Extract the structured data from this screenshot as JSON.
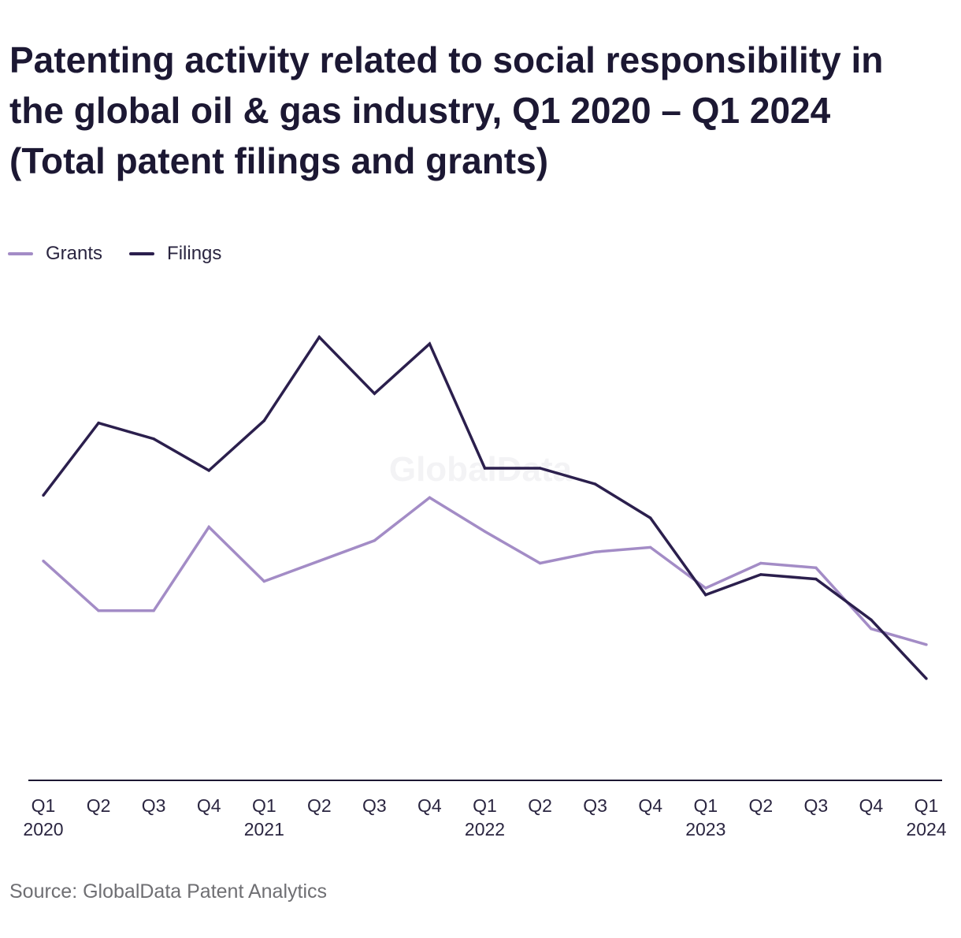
{
  "title_lines": [
    "Patenting activity related to social responsibility in",
    "the global oil & gas industry, Q1 2020 – Q1 2024",
    "(Total patent filings and grants)"
  ],
  "source": "Source: GlobalData Patent Analytics",
  "watermark": "GlobalData",
  "colors": {
    "Grants": "#a38cc6",
    "Filings": "#2b1f4d",
    "axis": "#1c1833"
  },
  "chart_data": {
    "type": "line",
    "title": "Patenting activity related to social responsibility in the global oil & gas industry, Q1 2020 – Q1 2024 (Total patent filings and grants)",
    "categories": [
      "Q1 2020",
      "Q2 2020",
      "Q3 2020",
      "Q4 2020",
      "Q1 2021",
      "Q2 2021",
      "Q3 2021",
      "Q4 2021",
      "Q1 2022",
      "Q2 2022",
      "Q3 2022",
      "Q4 2022",
      "Q1 2023",
      "Q2 2023",
      "Q3 2023",
      "Q4 2023",
      "Q1 2024"
    ],
    "tick_labels": [
      [
        "Q1",
        "2020"
      ],
      [
        "Q2",
        ""
      ],
      [
        "Q3",
        ""
      ],
      [
        "Q4",
        ""
      ],
      [
        "Q1",
        "2021"
      ],
      [
        "Q2",
        ""
      ],
      [
        "Q3",
        ""
      ],
      [
        "Q4",
        ""
      ],
      [
        "Q1",
        "2022"
      ],
      [
        "Q2",
        ""
      ],
      [
        "Q3",
        ""
      ],
      [
        "Q4",
        ""
      ],
      [
        "Q1",
        "2023"
      ],
      [
        "Q2",
        ""
      ],
      [
        "Q3",
        ""
      ],
      [
        "Q4",
        ""
      ],
      [
        "Q1",
        "2024"
      ]
    ],
    "series": [
      {
        "name": "Grants",
        "values": [
          97,
          75,
          75,
          112,
          88,
          97,
          106,
          125,
          110,
          96,
          101,
          103,
          85,
          96,
          94,
          67,
          60
        ]
      },
      {
        "name": "Filings",
        "values": [
          126,
          158,
          151,
          137,
          159,
          196,
          171,
          193,
          138,
          138,
          131,
          116,
          82,
          91,
          89,
          71,
          45
        ]
      }
    ],
    "ylim": [
      0,
      230
    ],
    "xlabel": "",
    "ylabel": "",
    "grid": false,
    "legend": "top-left"
  }
}
